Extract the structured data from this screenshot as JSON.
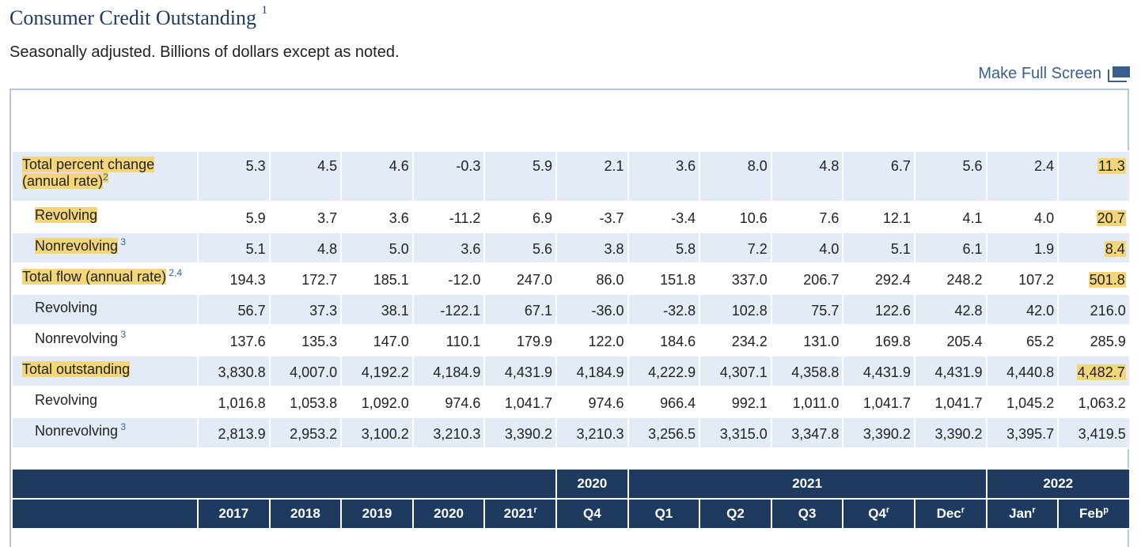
{
  "page": {
    "title": "Consumer Credit Outstanding",
    "title_note": "1",
    "subtitle": "Seasonally adjusted. Billions of dollars except as noted.",
    "fullscreen_label": "Make Full Screen"
  },
  "rows": [
    {
      "label": "Total percent change (annual rate)",
      "note": "2",
      "values": [
        "5.3",
        "4.5",
        "4.6",
        "-0.3",
        "5.9",
        "2.1",
        "3.6",
        "8.0",
        "4.8",
        "6.7",
        "5.6",
        "2.4",
        "11.3"
      ]
    },
    {
      "label": "Revolving",
      "note": "",
      "values": [
        "5.9",
        "3.7",
        "3.6",
        "-11.2",
        "6.9",
        "-3.7",
        "-3.4",
        "10.6",
        "7.6",
        "12.1",
        "4.1",
        "4.0",
        "20.7"
      ]
    },
    {
      "label": "Nonrevolving",
      "note": "3",
      "values": [
        "5.1",
        "4.8",
        "5.0",
        "3.6",
        "5.6",
        "3.8",
        "5.8",
        "7.2",
        "4.0",
        "5.1",
        "6.1",
        "1.9",
        "8.4"
      ]
    },
    {
      "label": "Total flow (annual rate)",
      "note": "2,4",
      "values": [
        "194.3",
        "172.7",
        "185.1",
        "-12.0",
        "247.0",
        "86.0",
        "151.8",
        "337.0",
        "206.7",
        "292.4",
        "248.2",
        "107.2",
        "501.8"
      ]
    },
    {
      "label": "Revolving",
      "note": "",
      "values": [
        "56.7",
        "37.3",
        "38.1",
        "-122.1",
        "67.1",
        "-36.0",
        "-32.8",
        "102.8",
        "75.7",
        "122.6",
        "42.8",
        "42.0",
        "216.0"
      ]
    },
    {
      "label": "Nonrevolving",
      "note": "3",
      "values": [
        "137.6",
        "135.3",
        "147.0",
        "110.1",
        "179.9",
        "122.0",
        "184.6",
        "234.2",
        "131.0",
        "169.8",
        "205.4",
        "65.2",
        "285.9"
      ]
    },
    {
      "label": "Total outstanding",
      "note": "",
      "values": [
        "3,830.8",
        "4,007.0",
        "4,192.2",
        "4,184.9",
        "4,431.9",
        "4,184.9",
        "4,222.9",
        "4,307.1",
        "4,358.8",
        "4,431.9",
        "4,431.9",
        "4,440.8",
        "4,482.7"
      ]
    },
    {
      "label": "Revolving",
      "note": "",
      "values": [
        "1,016.8",
        "1,053.8",
        "1,092.0",
        "974.6",
        "1,041.7",
        "974.6",
        "966.4",
        "992.1",
        "1,011.0",
        "1,041.7",
        "1,041.7",
        "1,045.2",
        "1,063.2"
      ]
    },
    {
      "label": "Nonrevolving",
      "note": "3",
      "values": [
        "2,813.9",
        "2,953.2",
        "3,100.2",
        "3,210.3",
        "3,390.2",
        "3,210.3",
        "3,256.5",
        "3,315.0",
        "3,347.8",
        "3,390.2",
        "3,390.2",
        "3,395.7",
        "3,419.5"
      ]
    }
  ],
  "header": {
    "groups": [
      "2020",
      "2021",
      "2022"
    ],
    "columns": [
      {
        "label": "2017",
        "mark": ""
      },
      {
        "label": "2018",
        "mark": ""
      },
      {
        "label": "2019",
        "mark": ""
      },
      {
        "label": "2020",
        "mark": ""
      },
      {
        "label": "2021",
        "mark": "r"
      },
      {
        "label": "Q4",
        "mark": ""
      },
      {
        "label": "Q1",
        "mark": ""
      },
      {
        "label": "Q2",
        "mark": ""
      },
      {
        "label": "Q3",
        "mark": ""
      },
      {
        "label": "Q4",
        "mark": "r"
      },
      {
        "label": "Dec",
        "mark": "r"
      },
      {
        "label": "Jan",
        "mark": "r"
      },
      {
        "label": "Feb",
        "mark": "p"
      }
    ]
  },
  "colors": {
    "navy": "#1e3a5f",
    "highlight": "#f3d57a",
    "row_blue": "#e3ecf6",
    "link": "#3a5f8a"
  }
}
